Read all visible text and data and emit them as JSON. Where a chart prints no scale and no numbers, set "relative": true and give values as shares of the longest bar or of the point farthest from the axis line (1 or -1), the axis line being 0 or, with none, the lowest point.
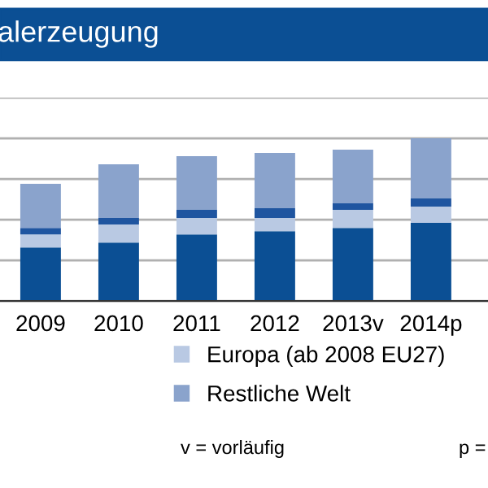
{
  "chart_data": {
    "type": "bar",
    "title": "alerzeugung",
    "stacked": true,
    "relative": true,
    "grid": "y",
    "legend": "bottom",
    "categories": [
      "2009",
      "2010",
      "2011",
      "2012",
      "2013v",
      "2014p"
    ],
    "series": [
      {
        "color": "#0b4f94",
        "values": [
          0.33,
          0.36,
          0.41,
          0.43,
          0.45,
          0.48
        ]
      },
      {
        "name": "Europa (ab 2008 EU27)",
        "color": "#b9c9e3",
        "values": [
          0.08,
          0.11,
          0.1,
          0.08,
          0.11,
          0.1
        ]
      },
      {
        "color": "#1f55a0",
        "values": [
          0.04,
          0.04,
          0.05,
          0.06,
          0.04,
          0.05
        ]
      },
      {
        "name": "Restliche Welt",
        "color": "#8aa3cc",
        "values": [
          0.27,
          0.33,
          0.33,
          0.34,
          0.33,
          0.37
        ]
      }
    ],
    "annotations": [
      "v = vorläufig",
      "p ="
    ]
  }
}
